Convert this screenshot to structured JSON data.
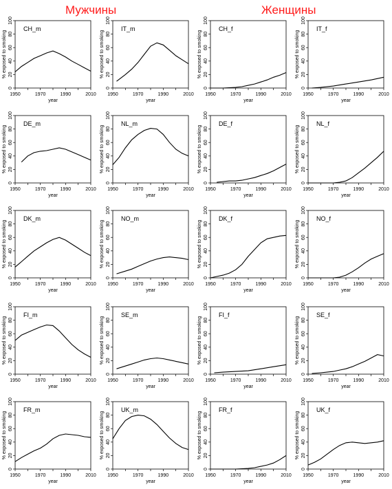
{
  "headings": {
    "men": "Мужчины",
    "women": "Женщины"
  },
  "chart_data": [
    {
      "type": "line",
      "panel": "CH_m",
      "title": "CH_m",
      "xlabel": "year",
      "ylabel": "% exposed to smoking",
      "xlim": [
        1950,
        2010
      ],
      "ylim": [
        0,
        100
      ],
      "xticks": [
        "1950",
        "1970",
        "1990",
        "2010"
      ],
      "yticks": [
        "0",
        "20",
        "40",
        "60",
        "80",
        "100"
      ],
      "x_start": 1950,
      "x": [
        1950,
        1955,
        1960,
        1965,
        1970,
        1975,
        1980,
        1985,
        1990,
        1995,
        2000,
        2005,
        2010
      ],
      "values": [
        24,
        32,
        38,
        44,
        48,
        52,
        55,
        51,
        46,
        40,
        35,
        30,
        25
      ]
    },
    {
      "type": "line",
      "panel": "IT_m",
      "title": "IT_m",
      "xlabel": "year",
      "ylabel": "% exposed to smoking",
      "xlim": [
        1950,
        2010
      ],
      "ylim": [
        0,
        100
      ],
      "xticks": [
        "1950",
        "1970",
        "1990",
        "2010"
      ],
      "yticks": [
        "0",
        "20",
        "40",
        "60",
        "80",
        "100"
      ],
      "x": [
        1953,
        1960,
        1965,
        1970,
        1975,
        1980,
        1985,
        1990,
        1995,
        2000,
        2005,
        2010
      ],
      "values": [
        10,
        20,
        28,
        38,
        50,
        62,
        67,
        64,
        56,
        48,
        42,
        36
      ]
    },
    {
      "type": "line",
      "panel": "CH_f",
      "title": "CH_f",
      "xlabel": "year",
      "ylabel": "% exposed to smoking",
      "xlim": [
        1950,
        2010
      ],
      "ylim": [
        0,
        100
      ],
      "xticks": [
        "1950",
        "1970",
        "1990",
        "2010"
      ],
      "yticks": [
        "0",
        "20",
        "40",
        "60",
        "80",
        "100"
      ],
      "x": [
        1950,
        1960,
        1970,
        1975,
        1980,
        1985,
        1990,
        1995,
        2000,
        2005,
        2010
      ],
      "values": [
        0,
        0,
        1,
        2,
        4,
        6,
        9,
        12,
        16,
        19,
        23
      ]
    },
    {
      "type": "line",
      "panel": "IT_f",
      "title": "IT_f",
      "xlabel": "year",
      "ylabel": "% exposed to smoking",
      "xlim": [
        1950,
        2010
      ],
      "ylim": [
        0,
        100
      ],
      "xticks": [
        "1950",
        "1970",
        "1990",
        "2010"
      ],
      "yticks": [
        "0",
        "20",
        "40",
        "60",
        "80",
        "100"
      ],
      "x": [
        1953,
        1960,
        1970,
        1980,
        1990,
        2000,
        2010
      ],
      "values": [
        0,
        1,
        3,
        6,
        9,
        12,
        16
      ]
    },
    {
      "type": "line",
      "panel": "DE_m",
      "title": "DE_m",
      "xlabel": "year",
      "ylabel": "% exposed to smoking",
      "xlim": [
        1950,
        2010
      ],
      "ylim": [
        0,
        100
      ],
      "xticks": [
        "1950",
        "1970",
        "1990",
        "2010"
      ],
      "yticks": [
        "0",
        "20",
        "40",
        "60",
        "80",
        "100"
      ],
      "x": [
        1955,
        1960,
        1965,
        1970,
        1975,
        1980,
        1985,
        1990,
        1995,
        2000,
        2005,
        2010
      ],
      "values": [
        31,
        40,
        45,
        47,
        48,
        50,
        52,
        50,
        46,
        42,
        38,
        34
      ]
    },
    {
      "type": "line",
      "panel": "NL_m",
      "title": "NL_m",
      "xlabel": "year",
      "ylabel": "% exposed to smoking",
      "xlim": [
        1950,
        2010
      ],
      "ylim": [
        0,
        100
      ],
      "xticks": [
        "1950",
        "1970",
        "1990",
        "2010"
      ],
      "yticks": [
        "0",
        "20",
        "40",
        "60",
        "80",
        "100"
      ],
      "x": [
        1950,
        1955,
        1960,
        1965,
        1970,
        1975,
        1980,
        1985,
        1990,
        1995,
        2000,
        2005,
        2010
      ],
      "values": [
        27,
        38,
        52,
        64,
        72,
        78,
        81,
        80,
        72,
        60,
        50,
        44,
        40
      ]
    },
    {
      "type": "line",
      "panel": "DE_f",
      "title": "DE_f",
      "xlabel": "year",
      "ylabel": "% exposed to smoking",
      "xlim": [
        1950,
        2010
      ],
      "ylim": [
        0,
        100
      ],
      "xticks": [
        "1950",
        "1970",
        "1990",
        "2010"
      ],
      "yticks": [
        "0",
        "20",
        "40",
        "60",
        "80",
        "100"
      ],
      "x": [
        1955,
        1960,
        1965,
        1970,
        1975,
        1980,
        1985,
        1990,
        1995,
        2000,
        2005,
        2010
      ],
      "values": [
        1,
        2,
        3,
        3,
        4,
        6,
        8,
        11,
        14,
        18,
        23,
        28
      ]
    },
    {
      "type": "line",
      "panel": "NL_f",
      "title": "NL_f",
      "xlabel": "year",
      "ylabel": "% exposed to smoking",
      "xlim": [
        1950,
        2010
      ],
      "ylim": [
        0,
        100
      ],
      "xticks": [
        "1950",
        "1970",
        "1990",
        "2010"
      ],
      "yticks": [
        "0",
        "20",
        "40",
        "60",
        "80",
        "100"
      ],
      "x": [
        1950,
        1960,
        1970,
        1975,
        1980,
        1985,
        1990,
        1995,
        2000,
        2005,
        2010
      ],
      "values": [
        0,
        0,
        0,
        1,
        3,
        8,
        15,
        22,
        30,
        38,
        47
      ]
    },
    {
      "type": "line",
      "panel": "DK_m",
      "title": "DK_m",
      "xlabel": "year",
      "ylabel": "% exposed to smoking",
      "xlim": [
        1950,
        2010
      ],
      "ylim": [
        0,
        100
      ],
      "xticks": [
        "1950",
        "1970",
        "1990",
        "2010"
      ],
      "yticks": [
        "0",
        "20",
        "40",
        "60",
        "80",
        "100"
      ],
      "x": [
        1950,
        1955,
        1960,
        1965,
        1970,
        1975,
        1980,
        1985,
        1990,
        1995,
        2000,
        2005,
        2010
      ],
      "values": [
        16,
        24,
        32,
        40,
        46,
        52,
        57,
        60,
        56,
        50,
        44,
        38,
        33
      ]
    },
    {
      "type": "line",
      "panel": "NO_m",
      "title": "NO_m",
      "xlabel": "year",
      "ylabel": "% exposed to smoking",
      "xlim": [
        1950,
        2010
      ],
      "ylim": [
        0,
        100
      ],
      "xticks": [
        "1950",
        "1970",
        "1990",
        "2010"
      ],
      "yticks": [
        "0",
        "20",
        "40",
        "60",
        "80",
        "100"
      ],
      "x": [
        1953,
        1960,
        1965,
        1970,
        1975,
        1980,
        1985,
        1990,
        1995,
        2000,
        2005,
        2010
      ],
      "values": [
        6,
        10,
        13,
        17,
        21,
        25,
        28,
        30,
        31,
        30,
        29,
        27
      ]
    },
    {
      "type": "line",
      "panel": "DK_f",
      "title": "DK_f",
      "xlabel": "year",
      "ylabel": "% exposed to smoking",
      "xlim": [
        1950,
        2010
      ],
      "ylim": [
        0,
        100
      ],
      "xticks": [
        "1950",
        "1970",
        "1990",
        "2010"
      ],
      "yticks": [
        "0",
        "20",
        "40",
        "60",
        "80",
        "100"
      ],
      "x": [
        1950,
        1955,
        1960,
        1965,
        1970,
        1975,
        1980,
        1985,
        1990,
        1995,
        2000,
        2005,
        2010
      ],
      "values": [
        0,
        2,
        4,
        7,
        12,
        20,
        32,
        42,
        52,
        58,
        60,
        62,
        63
      ]
    },
    {
      "type": "line",
      "panel": "NO_f",
      "title": "NO_f",
      "xlabel": "year",
      "ylabel": "% exposed to smoking",
      "xlim": [
        1950,
        2010
      ],
      "ylim": [
        0,
        100
      ],
      "xticks": [
        "1950",
        "1970",
        "1990",
        "2010"
      ],
      "yticks": [
        "0",
        "20",
        "40",
        "60",
        "80",
        "100"
      ],
      "x": [
        1950,
        1960,
        1970,
        1975,
        1980,
        1985,
        1990,
        1995,
        2000,
        2005,
        2010
      ],
      "values": [
        0,
        0,
        0,
        1,
        4,
        9,
        15,
        22,
        28,
        32,
        36
      ]
    },
    {
      "type": "line",
      "panel": "FI_m",
      "title": "FI_m",
      "xlabel": "year",
      "ylabel": "% exposed to smoking",
      "xlim": [
        1950,
        2010
      ],
      "ylim": [
        0,
        100
      ],
      "xticks": [
        "1950",
        "1970",
        "1990",
        "2010"
      ],
      "yticks": [
        "0",
        "20",
        "40",
        "60",
        "80",
        "100"
      ],
      "x": [
        1950,
        1955,
        1960,
        1965,
        1970,
        1975,
        1980,
        1985,
        1990,
        1995,
        2000,
        2005,
        2010
      ],
      "values": [
        50,
        58,
        62,
        66,
        70,
        73,
        72,
        64,
        54,
        44,
        36,
        30,
        25
      ]
    },
    {
      "type": "line",
      "panel": "SE_m",
      "title": "SE_m",
      "xlabel": "year",
      "ylabel": "% exposed to smoking",
      "xlim": [
        1950,
        2010
      ],
      "ylim": [
        0,
        100
      ],
      "xticks": [
        "1950",
        "1970",
        "1990",
        "2010"
      ],
      "yticks": [
        "0",
        "20",
        "40",
        "60",
        "80",
        "100"
      ],
      "x": [
        1953,
        1960,
        1965,
        1970,
        1975,
        1980,
        1985,
        1990,
        1995,
        2000,
        2005,
        2010
      ],
      "values": [
        8,
        12,
        15,
        18,
        21,
        23,
        24,
        23,
        21,
        19,
        17,
        15
      ]
    },
    {
      "type": "line",
      "panel": "FI_f",
      "title": "FI_f",
      "xlabel": "year",
      "ylabel": "% exposed to smoking",
      "xlim": [
        1950,
        2010
      ],
      "ylim": [
        0,
        100
      ],
      "xticks": [
        "1950",
        "1970",
        "1990",
        "2010"
      ],
      "yticks": [
        "0",
        "20",
        "40",
        "60",
        "80",
        "100"
      ],
      "x": [
        1953,
        1960,
        1970,
        1980,
        1990,
        2000,
        2010
      ],
      "values": [
        2,
        3,
        4,
        5,
        8,
        11,
        14
      ]
    },
    {
      "type": "line",
      "panel": "SE_f",
      "title": "SE_f",
      "xlabel": "year",
      "ylabel": "% exposed to smoking",
      "xlim": [
        1950,
        2010
      ],
      "ylim": [
        0,
        100
      ],
      "xticks": [
        "1950",
        "1970",
        "1990",
        "2010"
      ],
      "yticks": [
        "0",
        "20",
        "40",
        "60",
        "80",
        "100"
      ],
      "x": [
        1953,
        1960,
        1965,
        1970,
        1975,
        1980,
        1985,
        1990,
        1995,
        2000,
        2005,
        2010
      ],
      "values": [
        1,
        2,
        3,
        4,
        6,
        8,
        11,
        15,
        19,
        24,
        29,
        27
      ]
    },
    {
      "type": "line",
      "panel": "FR_m",
      "title": "FR_m",
      "xlabel": "year",
      "ylabel": "% exposed to smoking",
      "xlim": [
        1950,
        2010
      ],
      "ylim": [
        0,
        100
      ],
      "xticks": [
        "1950",
        "1970",
        "1990",
        "2010"
      ],
      "yticks": [
        "0",
        "20",
        "40",
        "60",
        "80",
        "100"
      ],
      "x": [
        1950,
        1955,
        1960,
        1965,
        1970,
        1975,
        1980,
        1985,
        1990,
        1995,
        2000,
        2005,
        2010
      ],
      "values": [
        11,
        17,
        22,
        27,
        31,
        37,
        45,
        50,
        52,
        51,
        50,
        48,
        47
      ]
    },
    {
      "type": "line",
      "panel": "UK_m",
      "title": "UK_m",
      "xlabel": "year",
      "ylabel": "% exposed to smoking",
      "xlim": [
        1950,
        2010
      ],
      "ylim": [
        0,
        100
      ],
      "xticks": [
        "1950",
        "1970",
        "1990",
        "2010"
      ],
      "yticks": [
        "0",
        "20",
        "40",
        "60",
        "80",
        "100"
      ],
      "x": [
        1950,
        1955,
        1960,
        1965,
        1970,
        1975,
        1980,
        1985,
        1990,
        1995,
        2000,
        2005,
        2010
      ],
      "values": [
        45,
        60,
        72,
        78,
        80,
        79,
        74,
        66,
        56,
        46,
        38,
        32,
        29
      ]
    },
    {
      "type": "line",
      "panel": "FR_f",
      "title": "FR_f",
      "xlabel": "year",
      "ylabel": "% exposed to smoking",
      "xlim": [
        1950,
        2010
      ],
      "ylim": [
        0,
        100
      ],
      "xticks": [
        "1950",
        "1970",
        "1990",
        "2010"
      ],
      "yticks": [
        "0",
        "20",
        "40",
        "60",
        "80",
        "100"
      ],
      "x": [
        1950,
        1960,
        1970,
        1980,
        1985,
        1990,
        1995,
        2000,
        2005,
        2010
      ],
      "values": [
        0,
        0,
        0,
        1,
        2,
        4,
        6,
        9,
        14,
        20
      ]
    },
    {
      "type": "line",
      "panel": "UK_f",
      "title": "UK_f",
      "xlabel": "year",
      "ylabel": "% exposed to smoking",
      "xlim": [
        1950,
        2010
      ],
      "ylim": [
        0,
        100
      ],
      "xticks": [
        "1950",
        "1970",
        "1990",
        "2010"
      ],
      "yticks": [
        "0",
        "20",
        "40",
        "60",
        "80",
        "100"
      ],
      "x": [
        1950,
        1955,
        1960,
        1965,
        1970,
        1975,
        1980,
        1985,
        1990,
        1995,
        2000,
        2005,
        2010
      ],
      "values": [
        6,
        10,
        15,
        22,
        29,
        35,
        39,
        40,
        39,
        38,
        39,
        40,
        42
      ]
    }
  ]
}
